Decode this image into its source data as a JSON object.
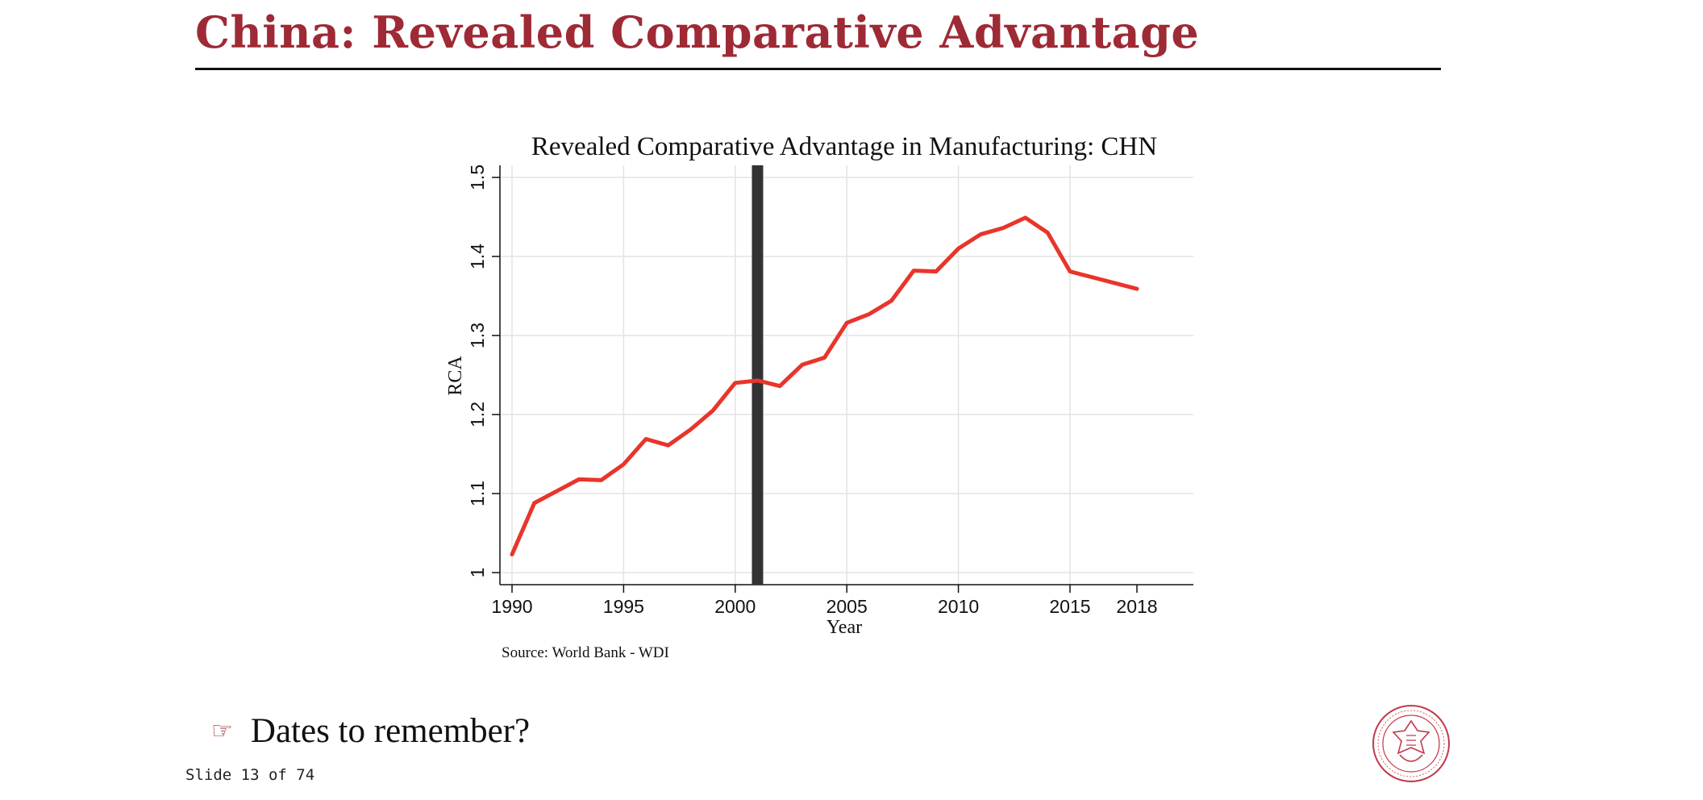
{
  "slide": {
    "title": "China: Revealed Comparative Advantage",
    "bullet_text": "Dates to remember?",
    "bullet_icon": "pointing-hand-icon",
    "slide_number": "Slide 13 of 74",
    "logo": "Carnegie Mellon University seal",
    "accent_color": "#9e2a35"
  },
  "chart_data": {
    "type": "line",
    "title": "Revealed Comparative Advantage in Manufacturing: CHN",
    "xlabel": "Year",
    "ylabel": "RCA",
    "source": "Source: World Bank - WDI",
    "xlim": [
      1990,
      2018
    ],
    "ylim": [
      1.0,
      1.5
    ],
    "x_ticks": [
      "1990",
      "1995",
      "2000",
      "2005",
      "2010",
      "2015",
      "2018"
    ],
    "y_ticks": [
      "1",
      "1.1",
      "1.2",
      "1.3",
      "1.4",
      "1.5"
    ],
    "grid": true,
    "marker_line": {
      "x": 2001,
      "color": "#333333"
    },
    "series": [
      {
        "color": "#e8352b",
        "x": [
          1990,
          1991,
          1992,
          1993,
          1994,
          1995,
          1996,
          1997,
          1998,
          1999,
          2000,
          2001,
          2002,
          2003,
          2004,
          2005,
          2006,
          2007,
          2008,
          2009,
          2010,
          2011,
          2012,
          2013,
          2014,
          2015,
          2018
        ],
        "y": [
          1.023,
          1.088,
          1.103,
          1.118,
          1.117,
          1.137,
          1.169,
          1.161,
          1.181,
          1.205,
          1.24,
          1.243,
          1.236,
          1.263,
          1.272,
          1.316,
          1.327,
          1.344,
          1.382,
          1.381,
          1.41,
          1.428,
          1.436,
          1.449,
          1.43,
          1.381,
          1.359
        ]
      }
    ]
  }
}
